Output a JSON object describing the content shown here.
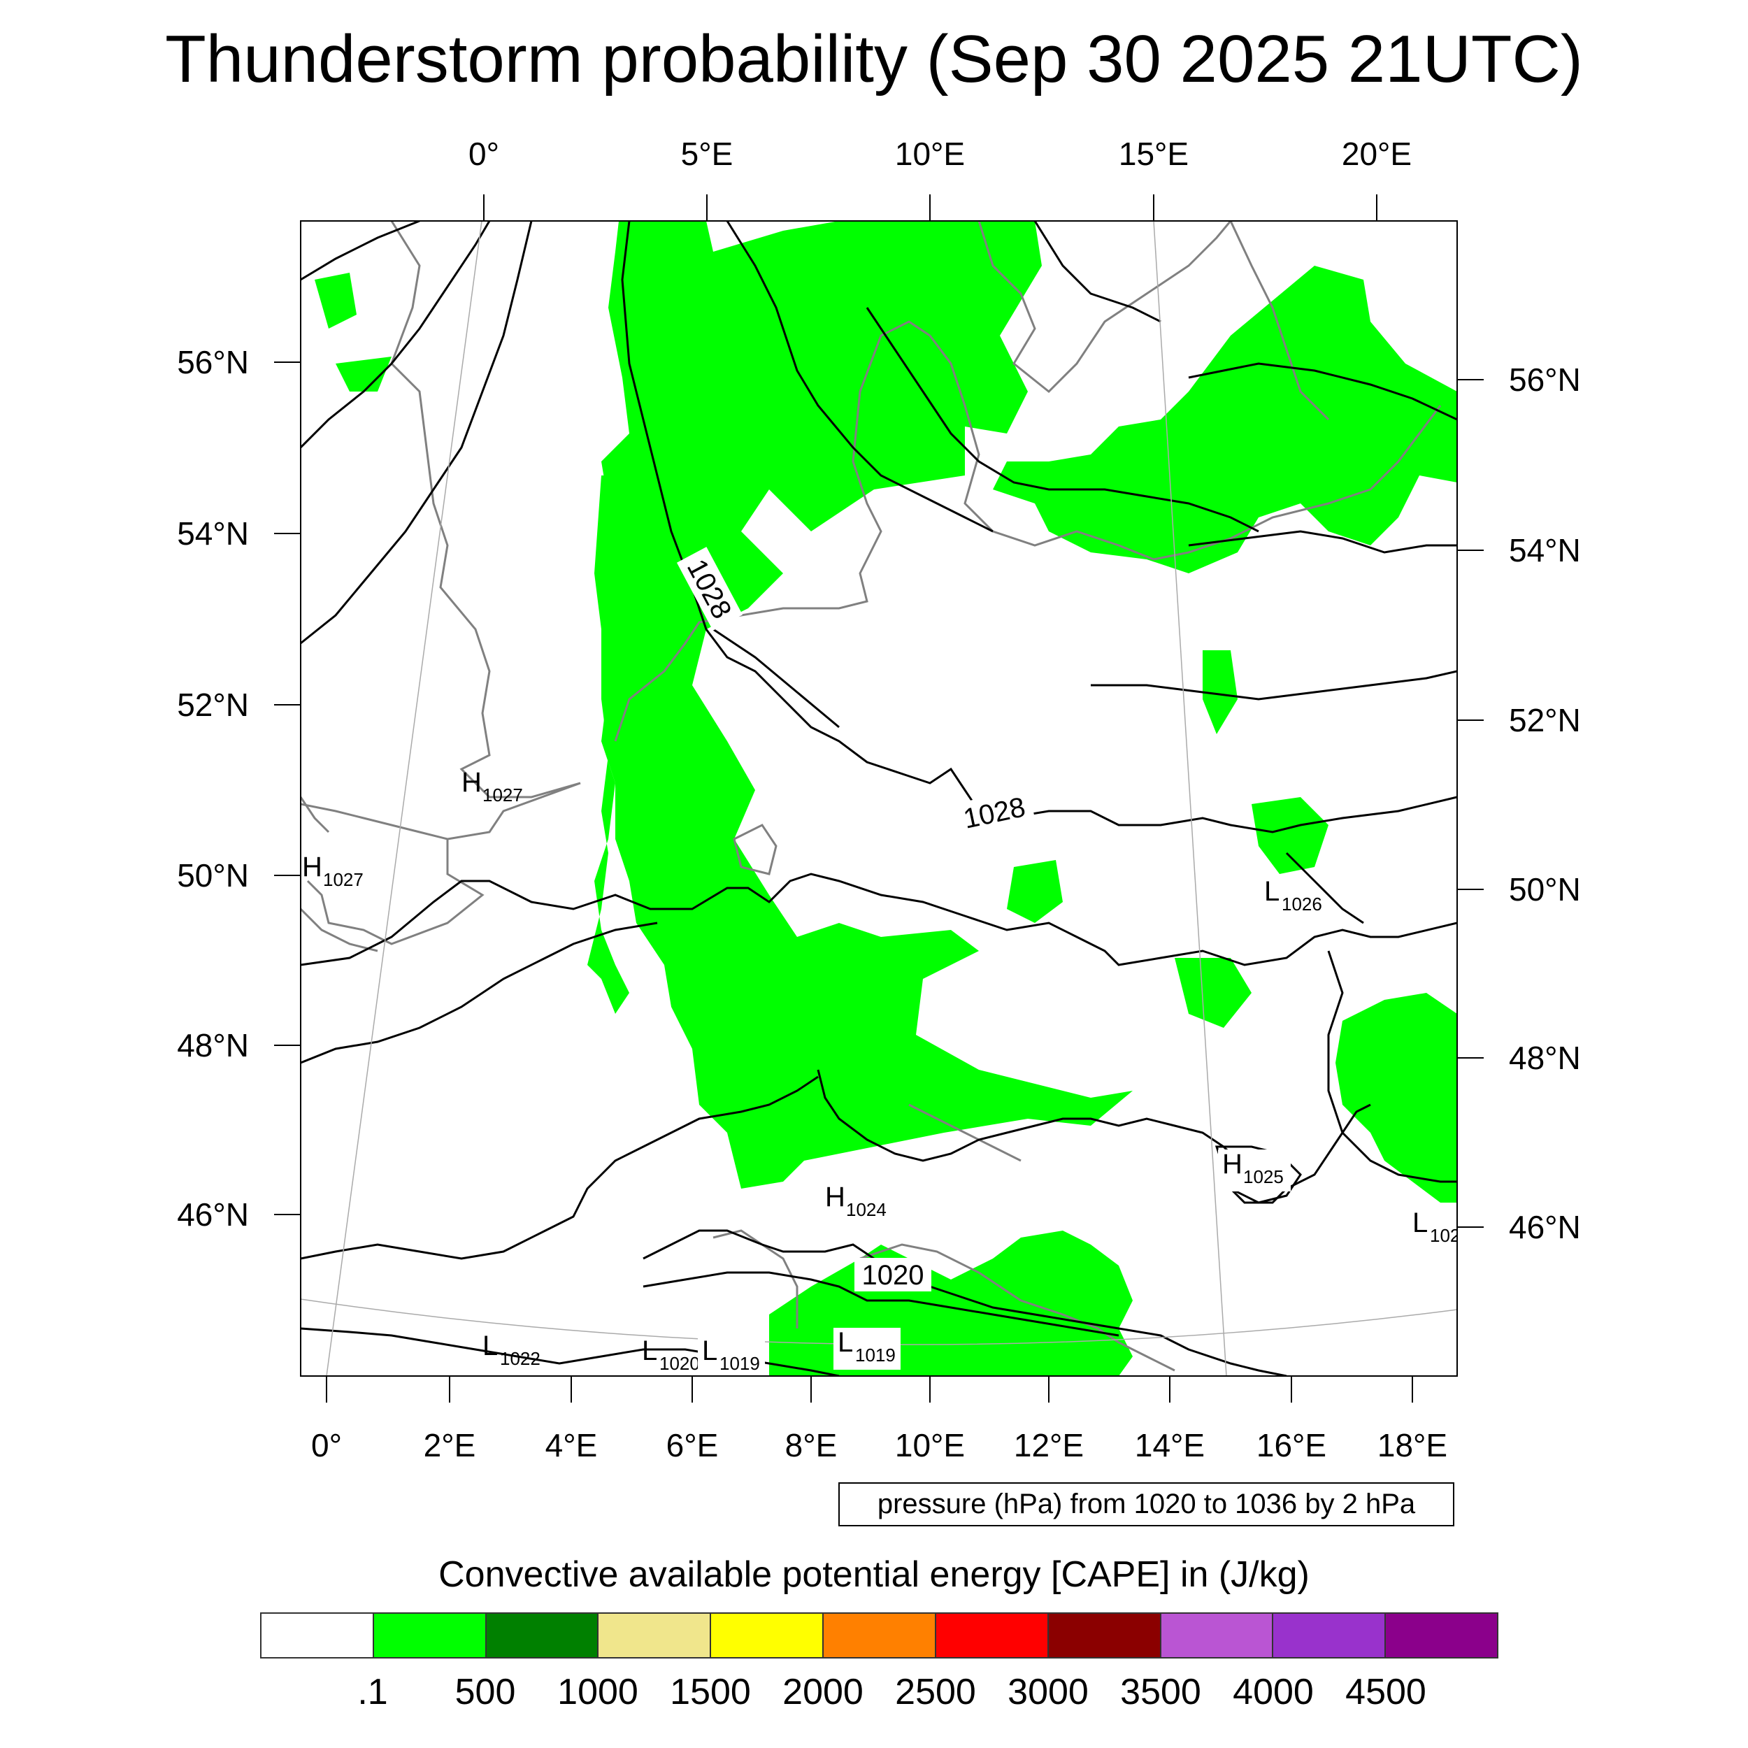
{
  "title": "Thunderstorm probability (Sep 30 2025 21UTC)",
  "top_lon_labels": [
    "0°",
    "5°E",
    "10°E",
    "15°E",
    "20°E"
  ],
  "bottom_lon_labels": [
    "0°",
    "2°E",
    "4°E",
    "6°E",
    "8°E",
    "10°E",
    "12°E",
    "14°E",
    "16°E",
    "18°E"
  ],
  "left_lat_labels": [
    "56°N",
    "54°N",
    "52°N",
    "50°N",
    "48°N",
    "46°N"
  ],
  "right_lat_labels": [
    "56°N",
    "54°N",
    "52°N",
    "50°N",
    "48°N",
    "46°N"
  ],
  "pressure_centers": [
    {
      "type": "H",
      "value": "1027"
    },
    {
      "type": "H",
      "value": "1027"
    },
    {
      "type": "H",
      "value": "1024"
    },
    {
      "type": "H",
      "value": "1025"
    },
    {
      "type": "L",
      "value": "1026"
    },
    {
      "type": "L",
      "value": "102"
    },
    {
      "type": "L",
      "value": "1022"
    },
    {
      "type": "L",
      "value": "1020"
    },
    {
      "type": "L",
      "value": "1019"
    },
    {
      "type": "L",
      "value": "1019"
    }
  ],
  "contour_labels": [
    "1028",
    "1028",
    "1020"
  ],
  "info_text": "pressure (hPa) from 1020 to 1036 by 2 hPa",
  "colorbar": {
    "title": "Convective available potential energy [CAPE] in (J/kg)",
    "colors": [
      "#ffffff",
      "#00ff00",
      "#008000",
      "#f0e68c",
      "#ffff00",
      "#ff8000",
      "#ff0000",
      "#8b0000",
      "#ba55d3",
      "#9932cc",
      "#8b008b"
    ],
    "labels": [
      ".1",
      "500",
      "1000",
      "1500",
      "2000",
      "2500",
      "3000",
      "3500",
      "4000",
      "4500"
    ]
  },
  "colors": {
    "cape_fill": "#00ff00",
    "isobar": "#000000",
    "coastline": "#808080",
    "graticule": "#aaaaaa"
  }
}
